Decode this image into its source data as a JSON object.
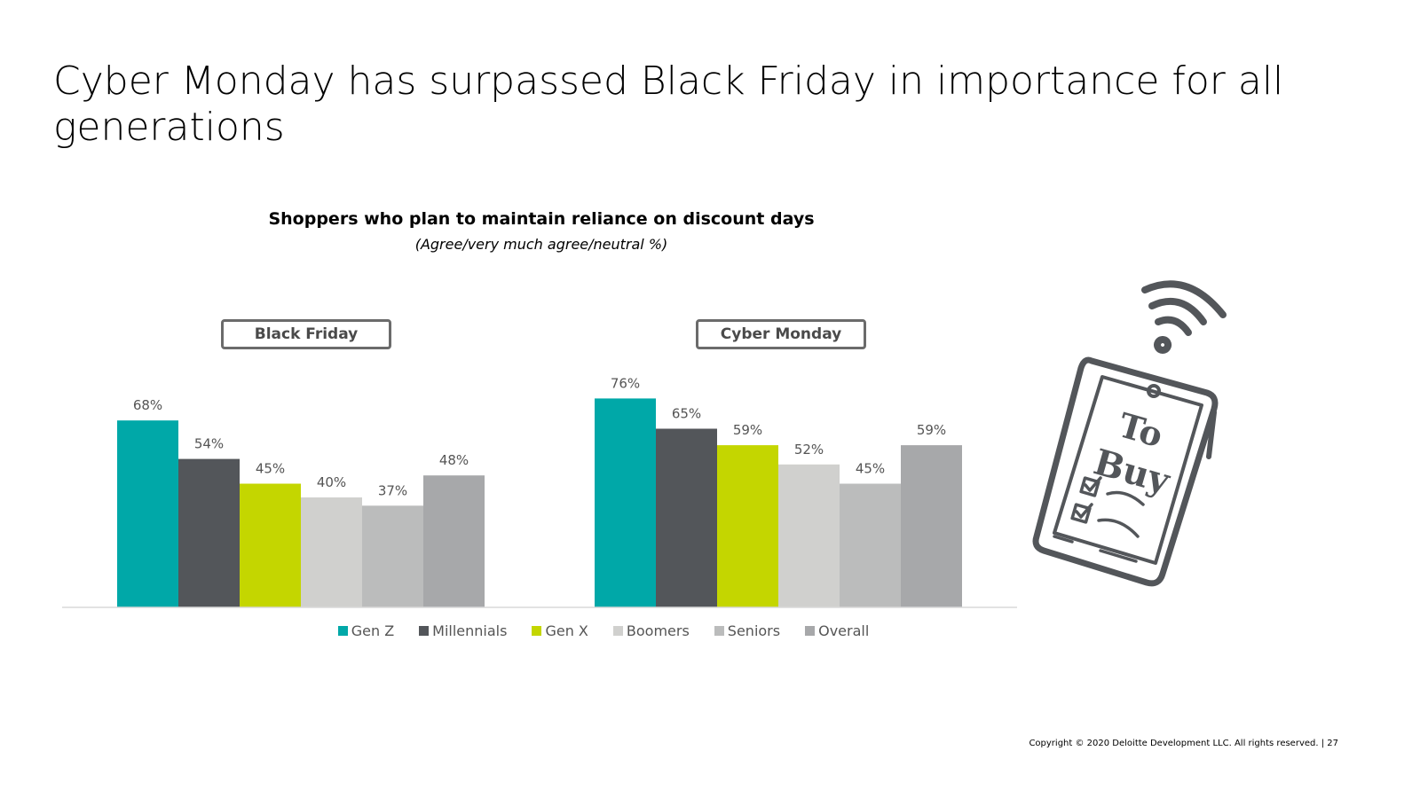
{
  "slide": {
    "title": "Cyber Monday has surpassed Black Friday in importance for all generations",
    "footer": "Copyright © 2020 Deloitte Development LLC. All rights reserved.   |    27"
  },
  "illustration": {
    "icon": "phone-to-buy-list-icon",
    "text_line1": "To",
    "text_line2": "Buy"
  },
  "chart_data": {
    "type": "bar",
    "title": "Shoppers who plan to maintain reliance on discount days",
    "subtitle": "(Agree/very much agree/neutral %)",
    "categories": [
      "Black Friday",
      "Cyber Monday"
    ],
    "series": [
      {
        "name": "Gen Z",
        "color": "#00a8a8",
        "values": [
          68,
          76
        ]
      },
      {
        "name": "Millennials",
        "color": "#53565a",
        "values": [
          54,
          65
        ]
      },
      {
        "name": "Gen X",
        "color": "#c4d600",
        "values": [
          45,
          59
        ]
      },
      {
        "name": "Boomers",
        "color": "#d0d0ce",
        "values": [
          40,
          52
        ]
      },
      {
        "name": "Seniors",
        "color": "#bbbcbc",
        "values": [
          37,
          45
        ]
      },
      {
        "name": "Overall",
        "color": "#a7a8aa",
        "values": [
          48,
          59
        ]
      }
    ],
    "value_suffix": "%",
    "ylim": [
      0,
      100
    ],
    "legend": "bottom",
    "grid": false
  }
}
